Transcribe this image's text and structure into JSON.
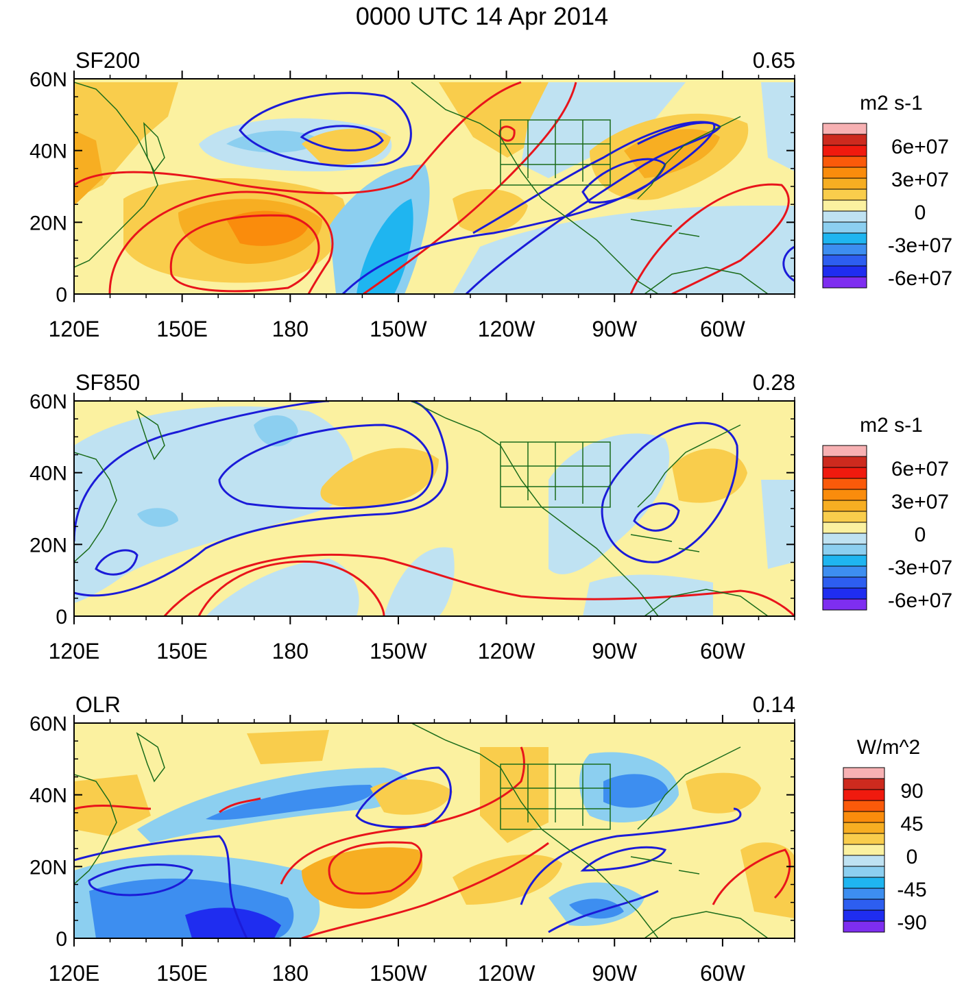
{
  "figure": {
    "title": "0000 UTC 14 Apr 2014"
  },
  "chart_data": [
    {
      "type": "heatmap",
      "panel": "SF200",
      "title": "SF200",
      "corner_value": "0.65",
      "x_ticks": [
        "120E",
        "150E",
        "180",
        "150W",
        "120W",
        "90W",
        "60W"
      ],
      "x_tick_lon": [
        120,
        150,
        180,
        210,
        240,
        270,
        300
      ],
      "y_ticks": [
        "60N",
        "40N",
        "20N",
        "0"
      ],
      "y_tick_lat": [
        60,
        40,
        20,
        0
      ],
      "xlim_lon": [
        120,
        320
      ],
      "ylim_lat": [
        0,
        60
      ],
      "colorbar": {
        "unit": "m2 s-1",
        "labels": [
          "6e+07",
          "3e+07",
          "0",
          "-3e+07",
          "-6e+07"
        ],
        "label_values": [
          60000000,
          30000000,
          0,
          -30000000,
          -60000000
        ],
        "colors": [
          "#f7b1b3",
          "#cd2a1e",
          "#f01a0e",
          "#fa5a0a",
          "#fa8c0c",
          "#f7ae22",
          "#f9cd4c",
          "#fbf1a0",
          "#bfe2f2",
          "#8ccff0",
          "#1fb5f0",
          "#3d8ef0",
          "#2d5ef0",
          "#1f2df0",
          "#7e2ef0"
        ]
      },
      "fill_levels": [
        {
          "name": "blob-nw-warm",
          "value": 20000000
        },
        {
          "name": "blob-subtropic-warm",
          "value": 35000000
        },
        {
          "name": "blob-central-cool",
          "value": -25000000
        },
        {
          "name": "blob-east-warm",
          "value": 20000000
        }
      ],
      "contours": [
        {
          "name": "positive-contours",
          "sign": "positive",
          "color": "#e8141b"
        },
        {
          "name": "negative-contours",
          "sign": "negative",
          "color": "#1b1bd8"
        }
      ]
    },
    {
      "type": "heatmap",
      "panel": "SF850",
      "title": "SF850",
      "corner_value": "0.28",
      "x_ticks": [
        "120E",
        "150E",
        "180",
        "150W",
        "120W",
        "90W",
        "60W"
      ],
      "x_tick_lon": [
        120,
        150,
        180,
        210,
        240,
        270,
        300
      ],
      "y_ticks": [
        "60N",
        "40N",
        "20N",
        "0"
      ],
      "y_tick_lat": [
        60,
        40,
        20,
        0
      ],
      "xlim_lon": [
        120,
        320
      ],
      "ylim_lat": [
        0,
        60
      ],
      "colorbar": {
        "unit": "m2 s-1",
        "labels": [
          "6e+07",
          "3e+07",
          "0",
          "-3e+07",
          "-6e+07"
        ],
        "label_values": [
          60000000,
          30000000,
          0,
          -30000000,
          -60000000
        ],
        "colors": [
          "#f7b1b3",
          "#cd2a1e",
          "#f01a0e",
          "#fa5a0a",
          "#fa8c0c",
          "#f7ae22",
          "#f9cd4c",
          "#fbf1a0",
          "#bfe2f2",
          "#8ccff0",
          "#1fb5f0",
          "#3d8ef0",
          "#2d5ef0",
          "#1f2df0",
          "#7e2ef0"
        ]
      },
      "contours": [
        {
          "name": "positive-contours",
          "sign": "positive",
          "color": "#e8141b"
        },
        {
          "name": "negative-contours",
          "sign": "negative",
          "color": "#1b1bd8"
        }
      ]
    },
    {
      "type": "heatmap",
      "panel": "OLR",
      "title": "OLR",
      "corner_value": "0.14",
      "x_ticks": [
        "120E",
        "150E",
        "180",
        "150W",
        "120W",
        "90W",
        "60W"
      ],
      "x_tick_lon": [
        120,
        150,
        180,
        210,
        240,
        270,
        300
      ],
      "y_ticks": [
        "60N",
        "40N",
        "20N",
        "0"
      ],
      "y_tick_lat": [
        60,
        40,
        20,
        0
      ],
      "xlim_lon": [
        120,
        320
      ],
      "ylim_lat": [
        0,
        60
      ],
      "colorbar": {
        "unit": "W/m^2",
        "labels": [
          "90",
          "45",
          "0",
          "-45",
          "-90"
        ],
        "label_values": [
          90,
          45,
          0,
          -45,
          -90
        ],
        "colors": [
          "#f7b1b3",
          "#cd2a1e",
          "#f01a0e",
          "#fa5a0a",
          "#fa8c0c",
          "#f7ae22",
          "#f9cd4c",
          "#fbf1a0",
          "#bfe2f2",
          "#8ccff0",
          "#1fb5f0",
          "#3d8ef0",
          "#2d5ef0",
          "#1f2df0",
          "#7e2ef0"
        ]
      },
      "contours": [
        {
          "name": "positive-contours",
          "sign": "positive",
          "color": "#e8141b"
        },
        {
          "name": "negative-contours",
          "sign": "negative",
          "color": "#1b1bd8"
        }
      ]
    }
  ],
  "colors": {
    "coastline": "#1a6b1a",
    "frame": "#000000"
  }
}
